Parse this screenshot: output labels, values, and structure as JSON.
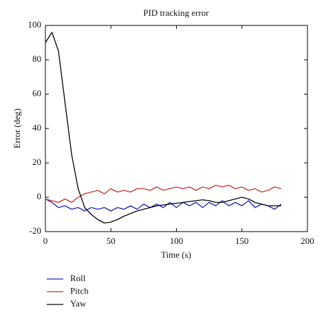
{
  "chart_data": {
    "type": "line",
    "title": "PID tracking error",
    "xlabel": "Time (s)",
    "ylabel": "Error (deg)",
    "x": [
      0,
      5,
      10,
      15,
      20,
      25,
      30,
      35,
      40,
      45,
      50,
      55,
      60,
      65,
      70,
      75,
      80,
      85,
      90,
      95,
      100,
      105,
      110,
      115,
      120,
      125,
      130,
      135,
      140,
      145,
      150,
      155,
      160,
      165,
      170,
      175,
      180
    ],
    "series": [
      {
        "name": "Roll",
        "color": "#1f1fb4",
        "values": [
          -1,
          -3,
          -6,
          -5,
          -7,
          -6,
          -8,
          -6,
          -7,
          -6,
          -8,
          -6,
          -7,
          -5,
          -7,
          -4,
          -6,
          -4,
          -6,
          -3,
          -6,
          -3,
          -5,
          -3,
          -6,
          -3,
          -5,
          -2,
          -5,
          -3,
          -5,
          -2,
          -6,
          -4,
          -5,
          -7,
          -4
        ]
      },
      {
        "name": "Pitch",
        "color": "#c83232",
        "values": [
          -1,
          -2,
          -3,
          -1,
          -3,
          0,
          2,
          3,
          4,
          2,
          5,
          3,
          4,
          3,
          5,
          5,
          4,
          6,
          4,
          5,
          6,
          5,
          6,
          4,
          6,
          5,
          7,
          6,
          7,
          5,
          6,
          4,
          5,
          3,
          4,
          6,
          5
        ]
      },
      {
        "name": "Yaw",
        "color": "#000000",
        "values": [
          90,
          96,
          85,
          55,
          25,
          5,
          -6,
          -10,
          -13,
          -15,
          -14.5,
          -13,
          -11,
          -9.5,
          -8,
          -7,
          -6,
          -5,
          -4.5,
          -4,
          -3.5,
          -3,
          -2.5,
          -2,
          -1.5,
          -2,
          -3,
          -3,
          -2,
          -1,
          0,
          -1,
          -3,
          -4,
          -5,
          -5,
          -5
        ]
      }
    ],
    "xlim": [
      0,
      200
    ],
    "xticks": [
      0,
      50,
      100,
      150,
      200
    ],
    "ylim": [
      -20,
      100
    ],
    "yticks": [
      -20,
      0,
      20,
      40,
      60,
      80,
      100
    ],
    "grid": false,
    "legend": "below"
  }
}
